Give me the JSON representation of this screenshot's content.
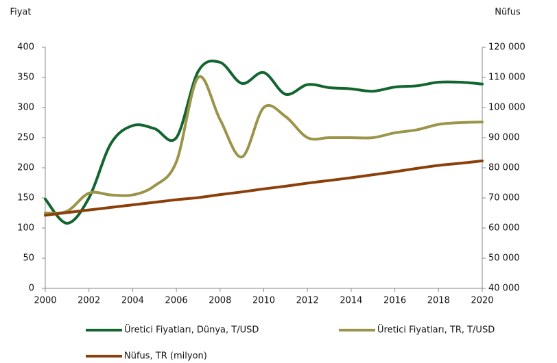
{
  "chart_data": {
    "type": "line",
    "ylabel": "Fiyat",
    "y2label": "Nüfus",
    "x": [
      2000,
      2001,
      2002,
      2003,
      2004,
      2005,
      2006,
      2007,
      2008,
      2009,
      2010,
      2011,
      2012,
      2013,
      2014,
      2015,
      2016,
      2017,
      2018,
      2019,
      2020
    ],
    "xlim": [
      2000,
      2020
    ],
    "xticks": [
      2000,
      2002,
      2004,
      2006,
      2008,
      2010,
      2012,
      2014,
      2016,
      2018,
      2020
    ],
    "ylim": [
      0,
      400
    ],
    "yticks": [
      0,
      50,
      100,
      150,
      200,
      250,
      300,
      350,
      400
    ],
    "y2lim": [
      40000,
      120000
    ],
    "y2ticks": [
      {
        "value": 40000,
        "label": "40 000"
      },
      {
        "value": 50000,
        "label": "50 000"
      },
      {
        "value": 60000,
        "label": "60 000"
      },
      {
        "value": 70000,
        "label": "70 000"
      },
      {
        "value": 80000,
        "label": "80 000"
      },
      {
        "value": 90000,
        "label": "90 000"
      },
      {
        "value": 100000,
        "label": "100 000"
      },
      {
        "value": 110000,
        "label": "110 000"
      },
      {
        "value": 120000,
        "label": "120 000"
      }
    ],
    "smooth": true,
    "series": [
      {
        "name": "Üretici Fiyatları, Dünya, T/USD",
        "color": "#12652f",
        "values": [
          148,
          108,
          150,
          240,
          270,
          265,
          250,
          360,
          375,
          340,
          358,
          322,
          338,
          333,
          331,
          327,
          334,
          336,
          342,
          342,
          339
        ]
      },
      {
        "name": "Üretici Fiyatları, TR, T/USD",
        "color": "#9c9449",
        "values": [
          125,
          128,
          158,
          155,
          155,
          170,
          210,
          350,
          280,
          218,
          300,
          285,
          250,
          250,
          250,
          250,
          258,
          263,
          272,
          275,
          276
        ]
      },
      {
        "name": "Nüfus, TR (milyon)",
        "color": "#8b3f0a",
        "axis": "y2",
        "values": [
          64250,
          65150,
          66000,
          66850,
          67700,
          68550,
          69400,
          70100,
          71100,
          72000,
          73000,
          73900,
          74900,
          75800,
          76700,
          77700,
          78700,
          79800,
          80800,
          81500,
          82300
        ]
      }
    ]
  }
}
